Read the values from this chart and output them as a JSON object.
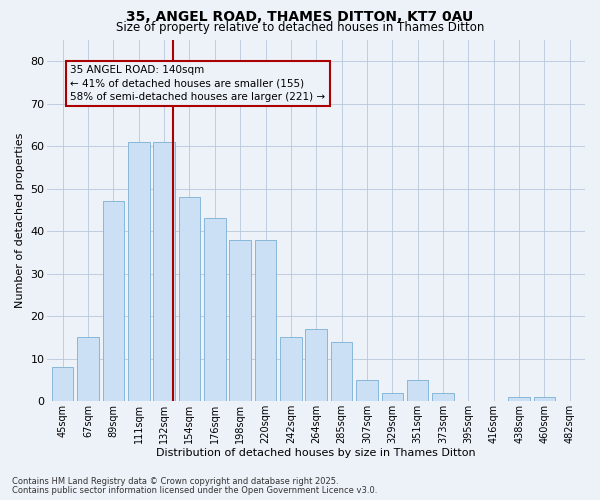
{
  "title1": "35, ANGEL ROAD, THAMES DITTON, KT7 0AU",
  "title2": "Size of property relative to detached houses in Thames Ditton",
  "xlabel": "Distribution of detached houses by size in Thames Ditton",
  "ylabel": "Number of detached properties",
  "categories": [
    "45sqm",
    "67sqm",
    "89sqm",
    "111sqm",
    "132sqm",
    "154sqm",
    "176sqm",
    "198sqm",
    "220sqm",
    "242sqm",
    "264sqm",
    "285sqm",
    "307sqm",
    "329sqm",
    "351sqm",
    "373sqm",
    "395sqm",
    "416sqm",
    "438sqm",
    "460sqm",
    "482sqm"
  ],
  "values": [
    8,
    15,
    47,
    61,
    61,
    48,
    43,
    38,
    38,
    15,
    17,
    14,
    5,
    2,
    5,
    2,
    0,
    0,
    1,
    1,
    0
  ],
  "bar_color": "#cce0f5",
  "bar_edge_color": "#7bafd4",
  "bar_edge_width": 0.6,
  "ylim": [
    0,
    85
  ],
  "yticks": [
    0,
    10,
    20,
    30,
    40,
    50,
    60,
    70,
    80
  ],
  "vline_color": "#aa0000",
  "background_color": "#edf2f9",
  "annotation_line1": "35 ANGEL ROAD: 140sqm",
  "annotation_line2": "← 41% of detached houses are smaller (155)",
  "annotation_line3": "58% of semi-detached houses are larger (221) →",
  "footer1": "Contains HM Land Registry data © Crown copyright and database right 2025.",
  "footer2": "Contains public sector information licensed under the Open Government Licence v3.0."
}
